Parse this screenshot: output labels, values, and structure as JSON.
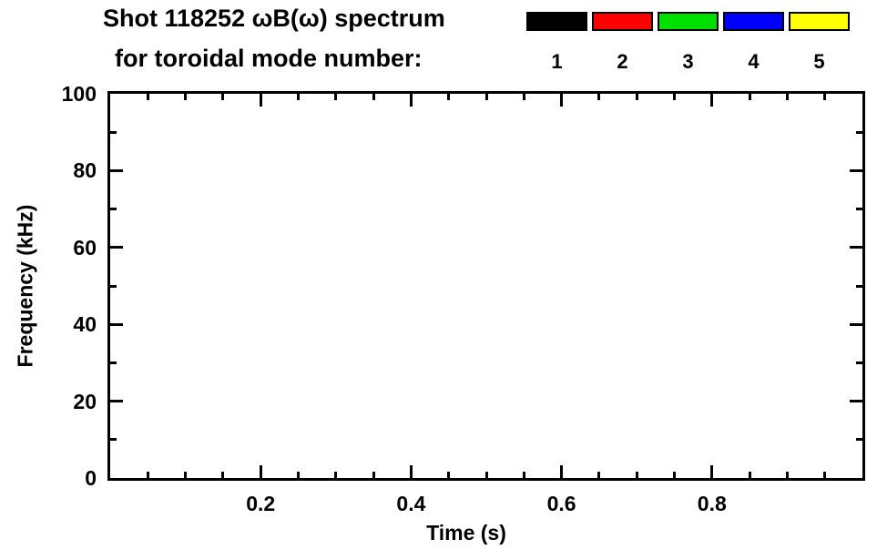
{
  "chart_data": {
    "type": "scatter",
    "title": "Shot 118252 ωB(ω) spectrum",
    "subtitle": "for toroidal mode number:",
    "x_axis": {
      "label": "Time (s)",
      "min": 0.0,
      "max": 1.0,
      "major_ticks": [
        0.2,
        0.4,
        0.6,
        0.8
      ],
      "major_tick_labels": [
        "0.2",
        "0.4",
        "0.6",
        "0.8"
      ],
      "minor_tick_step": 0.05
    },
    "y_axis": {
      "label": "Frequency (kHz)",
      "min": 0,
      "max": 100,
      "major_ticks": [
        0,
        20,
        40,
        60,
        80,
        100
      ],
      "major_tick_labels": [
        "0",
        "20",
        "40",
        "60",
        "80",
        "100"
      ],
      "minor_tick_step": 10
    },
    "legend": {
      "position": "top-right",
      "entries": [
        {
          "label": "1",
          "color": "#000000"
        },
        {
          "label": "2",
          "color": "#ff0000"
        },
        {
          "label": "3",
          "color": "#00e000"
        },
        {
          "label": "4",
          "color": "#0000ff"
        },
        {
          "label": "5",
          "color": "#ffff00"
        }
      ]
    },
    "series": [],
    "grid": "off"
  }
}
